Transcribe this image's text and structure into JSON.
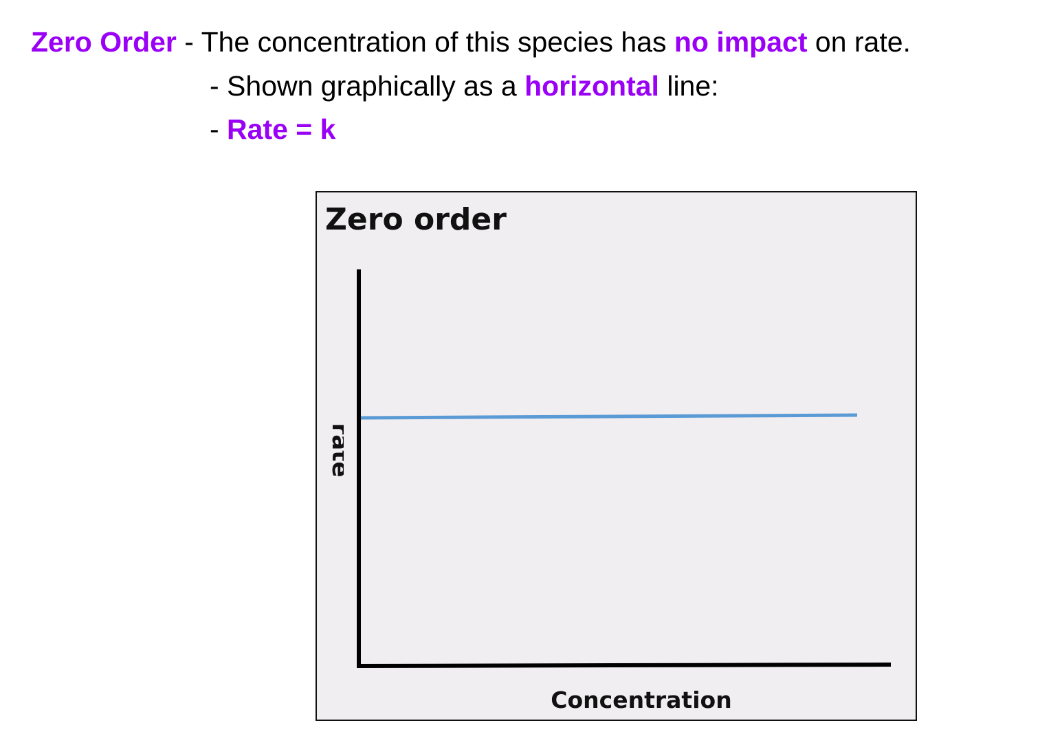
{
  "slide": {
    "lines": [
      [
        {
          "text": "Zero Order",
          "emphasis": true
        },
        {
          "text": " - The concentration of this species has ",
          "emphasis": false
        },
        {
          "text": "no impact",
          "emphasis": true
        },
        {
          "text": " on rate.",
          "emphasis": false
        }
      ],
      [
        {
          "text": "- Shown graphically as a ",
          "emphasis": false
        },
        {
          "text": "horizontal",
          "emphasis": true
        },
        {
          "text": " line:",
          "emphasis": false
        }
      ],
      [
        {
          "text": "- ",
          "emphasis": false
        },
        {
          "text": "Rate = k",
          "emphasis": true
        }
      ]
    ],
    "figure": {
      "title": "Zero order",
      "y_label": "rate",
      "x_label": "Concentration"
    }
  }
}
